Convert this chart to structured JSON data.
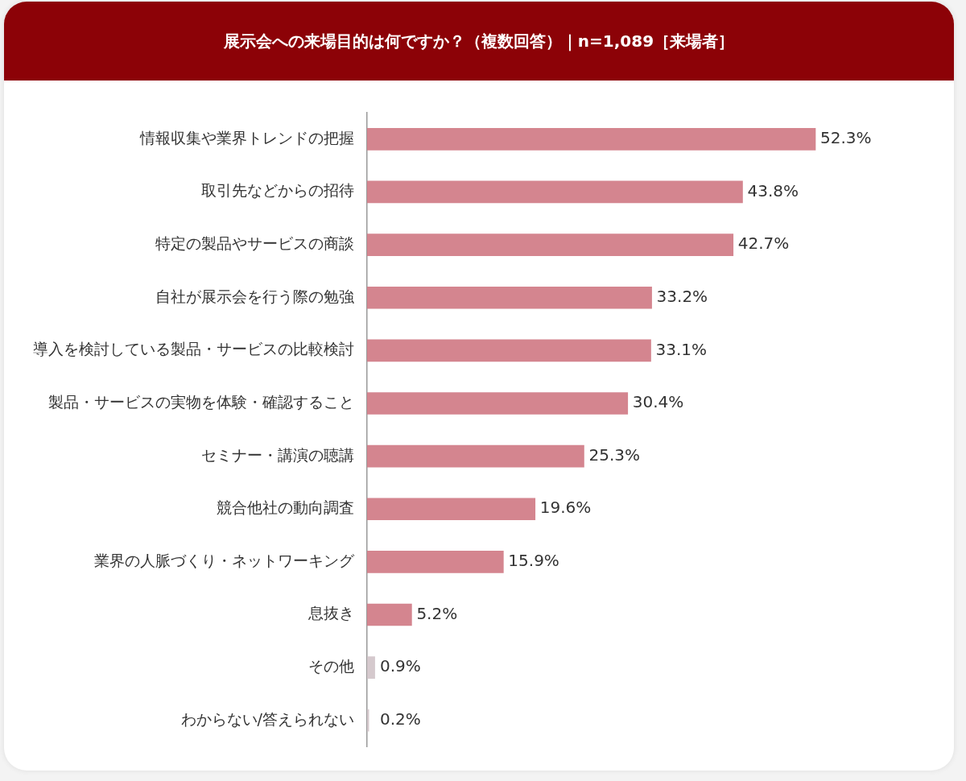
{
  "chart_data": {
    "type": "bar",
    "orientation": "horizontal",
    "title": "展示会への来場目的は何ですか？（複数回答）｜n=1,089［来場者］",
    "categories": [
      "情報収集や業界トレンドの把握",
      "取引先などからの招待",
      "特定の製品やサービスの商談",
      "自社が展示会を行う際の勉強",
      "導入を検討している製品・サービスの比較検討",
      "製品・サービスの実物を体験・確認すること",
      "セミナー・講演の聴講",
      "競合他社の動向調査",
      "業界の人脈づくり・ネットワーキング",
      "息抜き",
      "その他",
      "わからない/答えられない"
    ],
    "values": [
      52.3,
      43.8,
      42.7,
      33.2,
      33.1,
      30.4,
      25.3,
      19.6,
      15.9,
      5.2,
      0.9,
      0.2
    ],
    "colors": [
      "#d4858f",
      "#d4858f",
      "#d4858f",
      "#d4858f",
      "#d4858f",
      "#d4858f",
      "#d4858f",
      "#d4858f",
      "#d4858f",
      "#d4858f",
      "#d5c9cd",
      "#d5c9cd"
    ],
    "value_labels": [
      "52.3%",
      "43.8%",
      "42.7%",
      "33.2%",
      "33.1%",
      "30.4%",
      "25.3%",
      "19.6%",
      "15.9%",
      "5.2%",
      "0.9%",
      "0.2%"
    ],
    "legend": false
  }
}
